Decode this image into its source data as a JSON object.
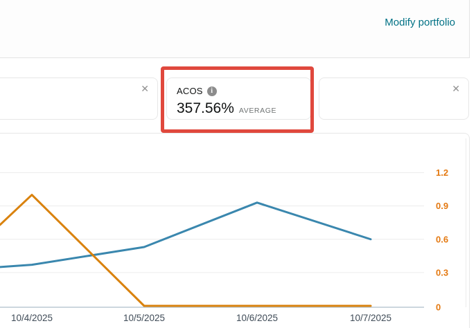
{
  "topbar": {
    "modify_portfolio_label": "Modify portfolio",
    "link_color": "#007185"
  },
  "cards": {
    "close_glyph": "✕",
    "acos_card": {
      "title": "ACOS",
      "info_glyph": "i",
      "value": "357.56%",
      "value_suffix": "AVERAGE"
    }
  },
  "annotation": {
    "shape": "red-highlight-rectangle",
    "color": "#e0483d"
  },
  "chart_data": {
    "type": "line",
    "categories": [
      "10/4/2025",
      "10/5/2025",
      "10/6/2025",
      "10/7/2025"
    ],
    "series": [
      {
        "name": "blue-line",
        "color": "#3a87ae",
        "left_edge_value": 0.35,
        "values": [
          0.37,
          0.53,
          0.93,
          0.6
        ]
      },
      {
        "name": "orange-line",
        "color": "#d9820e",
        "left_edge_value": 0.73,
        "values": [
          1.0,
          0.0,
          0.0,
          0.0
        ]
      }
    ],
    "y_axis": {
      "side": "right",
      "min": 0,
      "max": 1.2,
      "ticks": [
        0,
        0.3,
        0.6,
        0.9,
        1.2
      ],
      "tick_labels": [
        "0",
        "0.3",
        "0.6",
        "0.9",
        "1.2"
      ],
      "label_color": "#e47911"
    },
    "x_axis": {
      "label_color": "#3f4b57",
      "axis_line_color": "#bcc9d4"
    },
    "grid": true,
    "grid_color": "#ececec",
    "legend": "none",
    "title": ""
  }
}
